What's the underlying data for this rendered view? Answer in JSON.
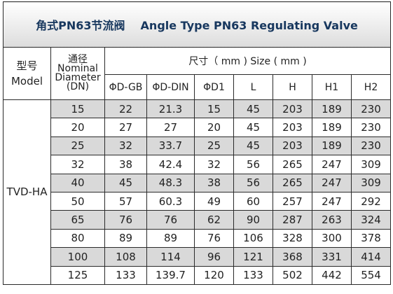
{
  "title": {
    "cn": "角式PN63节流阀",
    "en": "Angle Type PN63 Regulating Valve"
  },
  "header": {
    "model_cn": "型号",
    "model_en": "Model",
    "nominal_cn": "通径",
    "nominal_en_1": "Nominal",
    "nominal_en_2": "Diameter",
    "nominal_en_3": "(DN)",
    "size_label": "尺寸（ mm ) Size ( mm )",
    "columns": [
      "ΦD-GB",
      "ΦD-DIN",
      "ΦD1",
      "L",
      "H",
      "H1",
      "H2"
    ]
  },
  "model": "TVD-HA",
  "rows": [
    [
      "15",
      "22",
      "21.3",
      "15",
      "45",
      "203",
      "189",
      "230"
    ],
    [
      "20",
      "27",
      "27",
      "20",
      "45",
      "203",
      "189",
      "230"
    ],
    [
      "25",
      "32",
      "33.7",
      "25",
      "45",
      "203",
      "189",
      "230"
    ],
    [
      "32",
      "38",
      "42.4",
      "32",
      "56",
      "265",
      "247",
      "309"
    ],
    [
      "40",
      "45",
      "48.3",
      "38",
      "56",
      "265",
      "247",
      "309"
    ],
    [
      "50",
      "57",
      "60.3",
      "49",
      "60",
      "257",
      "247",
      "292"
    ],
    [
      "65",
      "76",
      "76",
      "62",
      "90",
      "287",
      "263",
      "324"
    ],
    [
      "80",
      "89",
      "89",
      "76",
      "106",
      "328",
      "300",
      "378"
    ],
    [
      "100",
      "108",
      "114",
      "96",
      "121",
      "368",
      "331",
      "414"
    ],
    [
      "125",
      "133",
      "139.7",
      "120",
      "133",
      "502",
      "442",
      "554"
    ]
  ],
  "colors": {
    "shade": "#d9d9d9",
    "title_text": "#17375e",
    "border": "#2a2a2a"
  }
}
